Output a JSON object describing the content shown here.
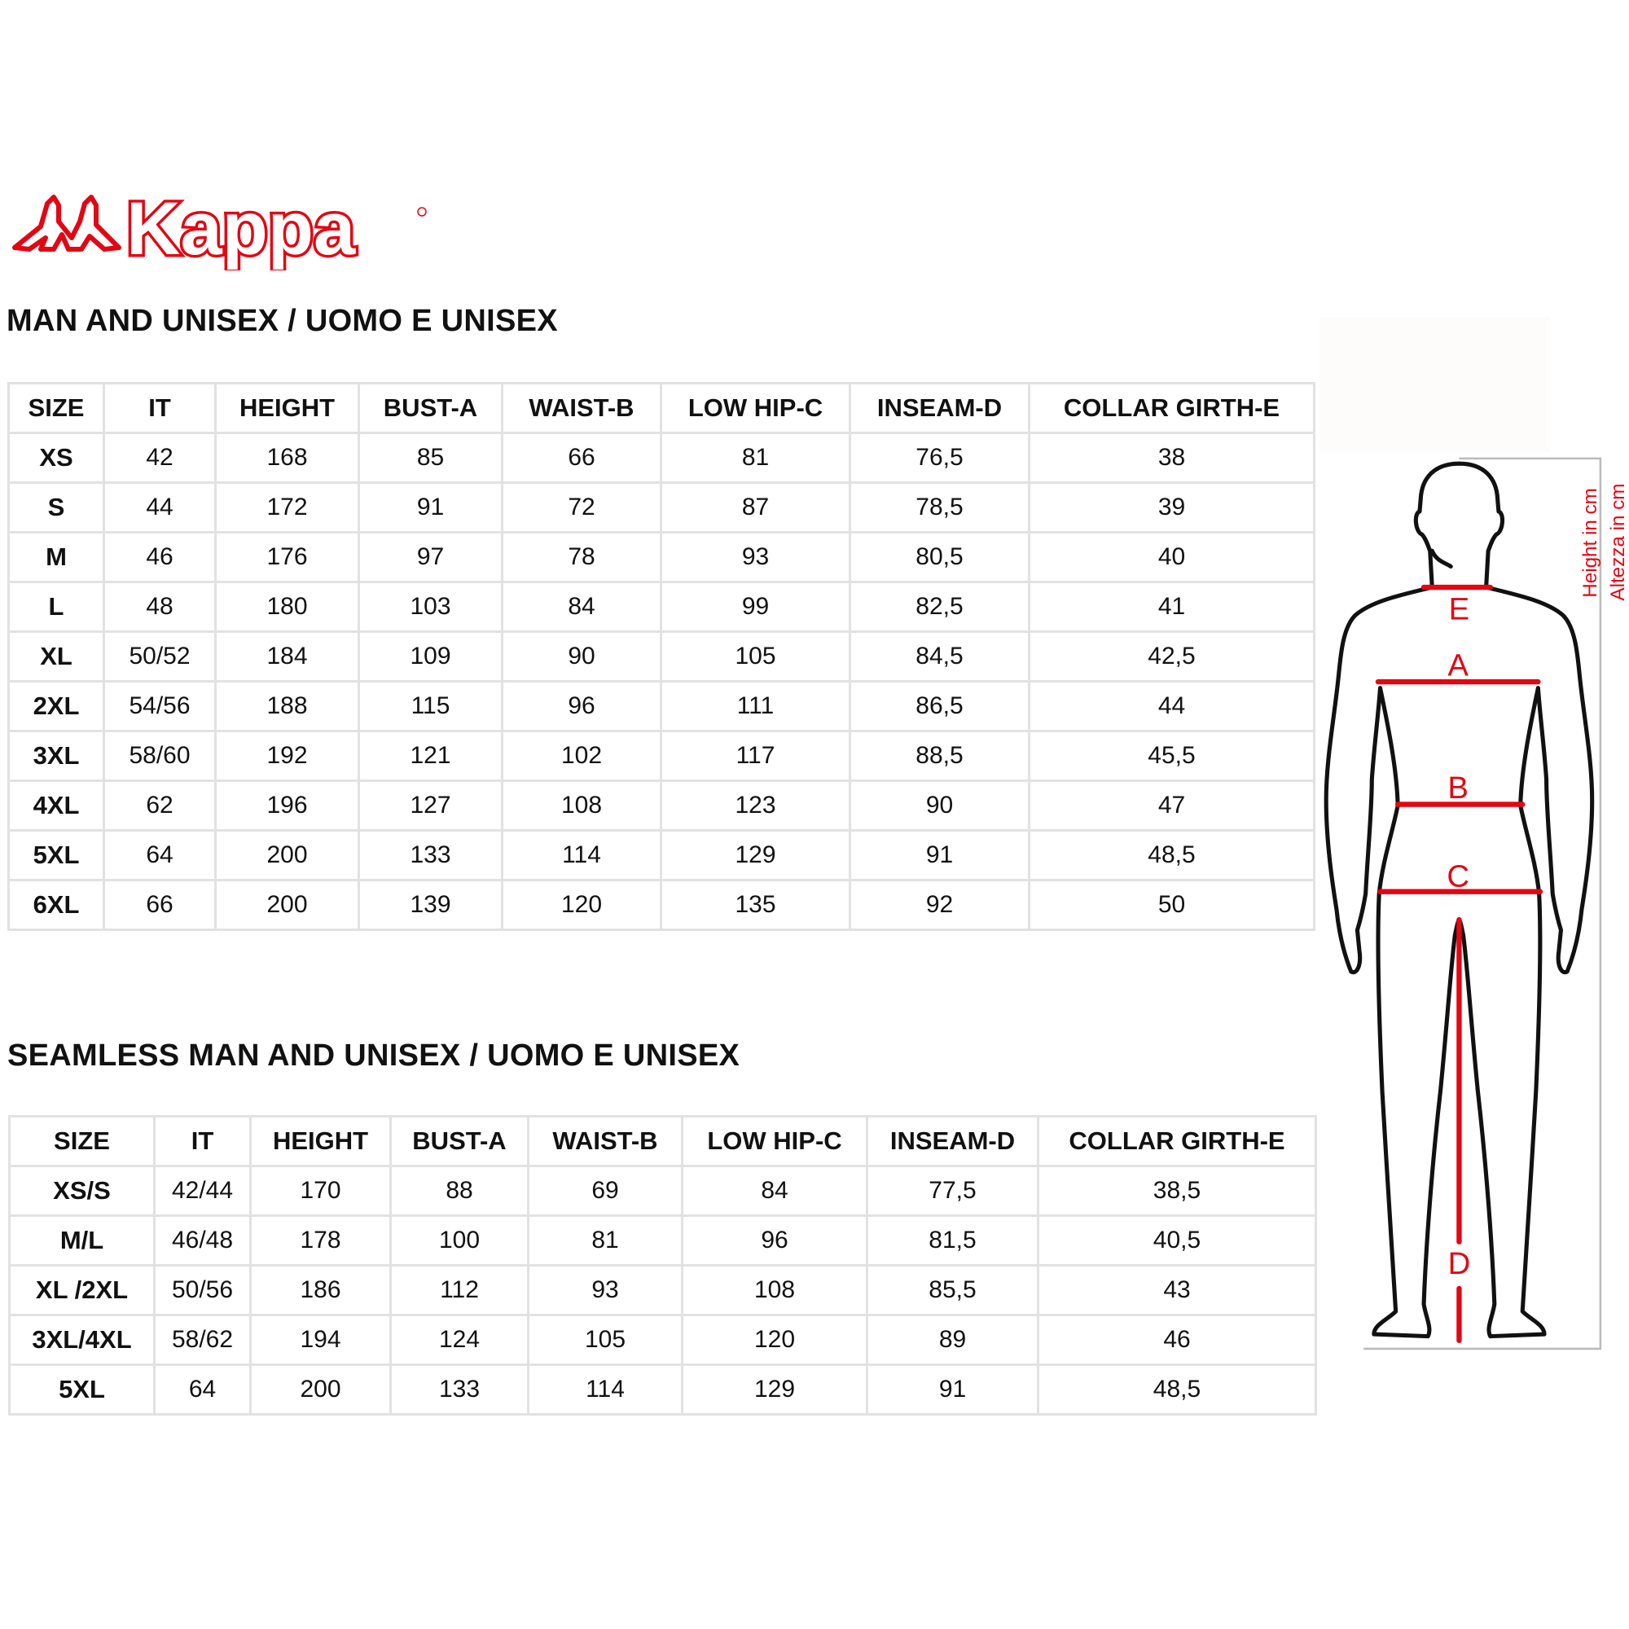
{
  "brand": {
    "logo_text": "Kappa",
    "color": "#e30613"
  },
  "table1": {
    "title": "MAN AND UNISEX / UOMO E UNISEX",
    "headers": [
      "SIZE",
      "IT",
      "HEIGHT",
      "BUST-A",
      "WAIST-B",
      "LOW HIP-C",
      "INSEAM-D",
      "COLLAR GIRTH-E"
    ],
    "rows": [
      [
        "XS",
        "42",
        "168",
        "85",
        "66",
        "81",
        "76,5",
        "38"
      ],
      [
        "S",
        "44",
        "172",
        "91",
        "72",
        "87",
        "78,5",
        "39"
      ],
      [
        "M",
        "46",
        "176",
        "97",
        "78",
        "93",
        "80,5",
        "40"
      ],
      [
        "L",
        "48",
        "180",
        "103",
        "84",
        "99",
        "82,5",
        "41"
      ],
      [
        "XL",
        "50/52",
        "184",
        "109",
        "90",
        "105",
        "84,5",
        "42,5"
      ],
      [
        "2XL",
        "54/56",
        "188",
        "115",
        "96",
        "111",
        "86,5",
        "44"
      ],
      [
        "3XL",
        "58/60",
        "192",
        "121",
        "102",
        "117",
        "88,5",
        "45,5"
      ],
      [
        "4XL",
        "62",
        "196",
        "127",
        "108",
        "123",
        "90",
        "47"
      ],
      [
        "5XL",
        "64",
        "200",
        "133",
        "114",
        "129",
        "91",
        "48,5"
      ],
      [
        "6XL",
        "66",
        "200",
        "139",
        "120",
        "135",
        "92",
        "50"
      ]
    ]
  },
  "table2": {
    "title": "SEAMLESS MAN AND UNISEX / UOMO E UNISEX",
    "headers": [
      "SIZE",
      "IT",
      "HEIGHT",
      "BUST-A",
      "WAIST-B",
      "LOW HIP-C",
      "INSEAM-D",
      "COLLAR GIRTH-E"
    ],
    "rows": [
      [
        "XS/S",
        "42/44",
        "170",
        "88",
        "69",
        "84",
        "77,5",
        "38,5"
      ],
      [
        "M/L",
        "46/48",
        "178",
        "100",
        "81",
        "96",
        "81,5",
        "40,5"
      ],
      [
        "XL /2XL",
        "50/56",
        "186",
        "112",
        "93",
        "108",
        "85,5",
        "43"
      ],
      [
        "3XL/4XL",
        "58/62",
        "194",
        "124",
        "105",
        "120",
        "89",
        "46"
      ],
      [
        "5XL",
        "64",
        "200",
        "133",
        "114",
        "129",
        "91",
        "48,5"
      ]
    ]
  },
  "figure": {
    "labels": {
      "a": "A",
      "b": "B",
      "c": "C",
      "d": "D",
      "e": "E"
    },
    "height_en": "Height in cm",
    "height_it": "Altezza in cm",
    "line_color": "#e30613"
  }
}
